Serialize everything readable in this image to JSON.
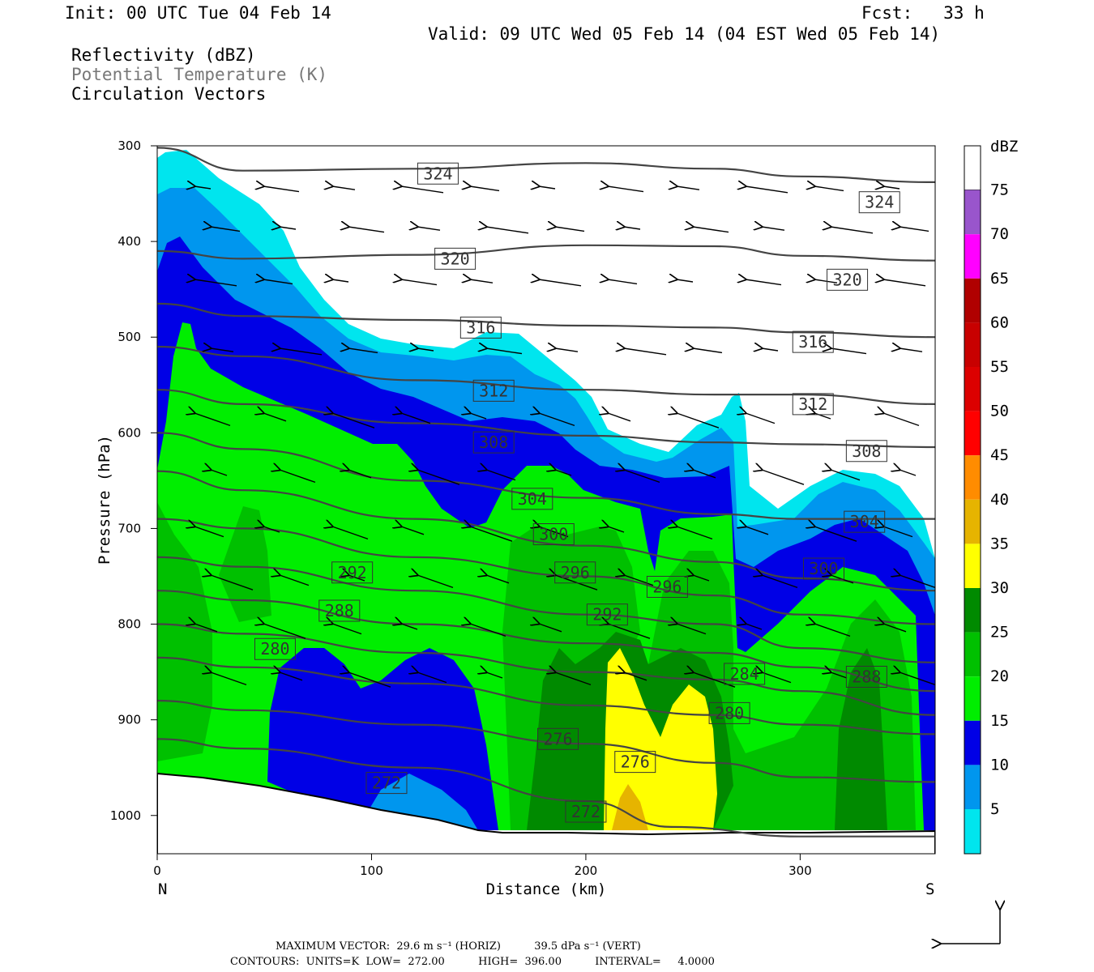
{
  "header": {
    "init": "Init: 00 UTC Tue 04 Feb 14",
    "fcst": "Fcst:   33 h",
    "valid": "Valid: 09 UTC Wed 05 Feb 14 (04 EST Wed 05 Feb 14)",
    "field1": "Reflectivity (dBZ)",
    "field2": "Potential Temperature (K)",
    "field3": "Circulation Vectors"
  },
  "footer": {
    "line1": "MAXIMUM VECTOR:  29.6 m s⁻¹ (HORIZ)          39.5 dPa s⁻¹ (VERT)",
    "line2": "CONTOURS:  UNITS=K  LOW=  272.00          HIGH=  396.00          INTERVAL=     4.0000"
  },
  "colors": {
    "c5": "#00e5ee",
    "c10": "#0096ee",
    "c15": "#0000e6",
    "c20": "#00ee00",
    "c25": "#00c000",
    "c30": "#008a00",
    "c35": "#ffff00",
    "c40": "#e6b400",
    "c45": "#ff8c00",
    "c50": "#ff0000",
    "c55": "#dc0000",
    "c60": "#c80000",
    "c65": "#b00000",
    "c70": "#ff00ff",
    "c75": "#9955cc",
    "contour": "#444444"
  },
  "chart_data": {
    "type": "cross-section",
    "xlabel": "Distance (km)",
    "ylabel": "Pressure (hPa)",
    "xlim": [
      0,
      363
    ],
    "ylim": [
      300,
      1040
    ],
    "xticks": [
      0,
      100,
      200,
      300
    ],
    "yticks": [
      300,
      400,
      500,
      600,
      700,
      800,
      900,
      1000
    ],
    "x_end_labels": {
      "left": "N",
      "right": "S"
    },
    "colorbar": {
      "unit": "dBZ",
      "levels": [
        5,
        10,
        15,
        20,
        25,
        30,
        35,
        40,
        45,
        50,
        55,
        60,
        65,
        70,
        75
      ]
    },
    "theta_contours": [
      {
        "value": 324,
        "points": [
          [
            0,
            302
          ],
          [
            40,
            326
          ],
          [
            120,
            324
          ],
          [
            200,
            318
          ],
          [
            260,
            324
          ],
          [
            300,
            332
          ],
          [
            363,
            338
          ]
        ]
      },
      {
        "value": 320,
        "points": [
          [
            0,
            410
          ],
          [
            40,
            418
          ],
          [
            120,
            414
          ],
          [
            200,
            404
          ],
          [
            260,
            405
          ],
          [
            300,
            415
          ],
          [
            363,
            420
          ]
        ]
      },
      {
        "value": 316,
        "points": [
          [
            0,
            465
          ],
          [
            40,
            478
          ],
          [
            120,
            482
          ],
          [
            200,
            488
          ],
          [
            260,
            490
          ],
          [
            300,
            495
          ],
          [
            363,
            500
          ]
        ]
      },
      {
        "value": 312,
        "points": [
          [
            0,
            510
          ],
          [
            40,
            520
          ],
          [
            120,
            545
          ],
          [
            200,
            555
          ],
          [
            260,
            560
          ],
          [
            300,
            560
          ],
          [
            363,
            570
          ]
        ]
      },
      {
        "value": 308,
        "points": [
          [
            0,
            555
          ],
          [
            40,
            570
          ],
          [
            120,
            590
          ],
          [
            200,
            603
          ],
          [
            260,
            610
          ],
          [
            300,
            612
          ],
          [
            363,
            615
          ]
        ]
      },
      {
        "value": 304,
        "points": [
          [
            0,
            600
          ],
          [
            40,
            617
          ],
          [
            120,
            650
          ],
          [
            200,
            668
          ],
          [
            260,
            685
          ],
          [
            300,
            690
          ],
          [
            363,
            690
          ]
        ]
      },
      {
        "value": 300,
        "points": [
          [
            0,
            640
          ],
          [
            40,
            660
          ],
          [
            120,
            690
          ],
          [
            200,
            718
          ],
          [
            260,
            735
          ],
          [
            300,
            752
          ],
          [
            363,
            765
          ]
        ]
      },
      {
        "value": 296,
        "points": [
          [
            0,
            690
          ],
          [
            40,
            700
          ],
          [
            120,
            730
          ],
          [
            200,
            750
          ],
          [
            260,
            770
          ],
          [
            300,
            790
          ],
          [
            363,
            800
          ]
        ]
      },
      {
        "value": 292,
        "points": [
          [
            0,
            730
          ],
          [
            40,
            740
          ],
          [
            120,
            765
          ],
          [
            200,
            790
          ],
          [
            260,
            800
          ],
          [
            300,
            825
          ],
          [
            363,
            840
          ]
        ]
      },
      {
        "value": 288,
        "points": [
          [
            0,
            765
          ],
          [
            40,
            775
          ],
          [
            120,
            800
          ],
          [
            200,
            820
          ],
          [
            260,
            830
          ],
          [
            300,
            845
          ],
          [
            363,
            870
          ]
        ]
      },
      {
        "value": 284,
        "points": [
          [
            0,
            800
          ],
          [
            40,
            810
          ],
          [
            120,
            830
          ],
          [
            200,
            850
          ],
          [
            260,
            858
          ],
          [
            300,
            870
          ],
          [
            363,
            895
          ]
        ]
      },
      {
        "value": 280,
        "points": [
          [
            0,
            835
          ],
          [
            40,
            845
          ],
          [
            120,
            862
          ],
          [
            200,
            885
          ],
          [
            260,
            895
          ],
          [
            300,
            905
          ],
          [
            363,
            915
          ]
        ]
      },
      {
        "value": 276,
        "points": [
          [
            0,
            880
          ],
          [
            40,
            890
          ],
          [
            120,
            905
          ],
          [
            200,
            925
          ],
          [
            260,
            945
          ],
          [
            300,
            960
          ],
          [
            363,
            965
          ]
        ]
      },
      {
        "value": 272,
        "points": [
          [
            0,
            920
          ],
          [
            40,
            930
          ],
          [
            120,
            950
          ],
          [
            200,
            985
          ],
          [
            240,
            1012
          ],
          [
            300,
            1022
          ],
          [
            363,
            1022
          ]
        ]
      }
    ],
    "contour_labels": [
      {
        "value": "324",
        "x": 131,
        "p": 329
      },
      {
        "value": "324",
        "x": 337,
        "p": 359
      },
      {
        "value": "320",
        "x": 139,
        "p": 418
      },
      {
        "value": "320",
        "x": 322,
        "p": 440
      },
      {
        "value": "316",
        "x": 151,
        "p": 490
      },
      {
        "value": "316",
        "x": 306,
        "p": 505
      },
      {
        "value": "312",
        "x": 157,
        "p": 556
      },
      {
        "value": "312",
        "x": 306,
        "p": 570
      },
      {
        "value": "308",
        "x": 157,
        "p": 610
      },
      {
        "value": "308",
        "x": 331,
        "p": 619
      },
      {
        "value": "304",
        "x": 175,
        "p": 669
      },
      {
        "value": "304",
        "x": 330,
        "p": 693
      },
      {
        "value": "300",
        "x": 185,
        "p": 706
      },
      {
        "value": "300",
        "x": 311,
        "p": 742
      },
      {
        "value": "296",
        "x": 195,
        "p": 746
      },
      {
        "value": "296",
        "x": 238,
        "p": 761
      },
      {
        "value": "292",
        "x": 91,
        "p": 746
      },
      {
        "value": "292",
        "x": 210,
        "p": 790
      },
      {
        "value": "288",
        "x": 85,
        "p": 786
      },
      {
        "value": "288",
        "x": 331,
        "p": 855
      },
      {
        "value": "284",
        "x": 274,
        "p": 852
      },
      {
        "value": "280",
        "x": 55,
        "p": 826
      },
      {
        "value": "280",
        "x": 267,
        "p": 893
      },
      {
        "value": "276",
        "x": 187,
        "p": 920
      },
      {
        "value": "276",
        "x": 223,
        "p": 944
      },
      {
        "value": "272",
        "x": 107,
        "p": 966
      },
      {
        "value": "272",
        "x": 200,
        "p": 996
      }
    ],
    "max_vector": {
      "horiz": "29.6 m s-1",
      "vert": "39.5 dPa s-1"
    },
    "contour_info": {
      "units": "K",
      "low": 272.0,
      "high": 396.0,
      "interval": 4.0
    }
  }
}
